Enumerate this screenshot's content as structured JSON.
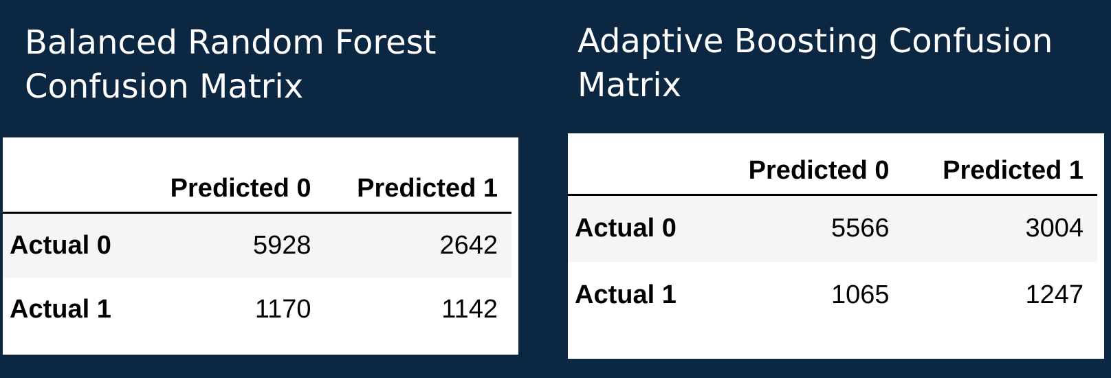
{
  "background_color": "#0c2742",
  "tables": [
    {
      "title": "Balanced Random Forest Confusion Matrix",
      "columns": [
        "",
        "Predicted 0",
        "Predicted 1"
      ],
      "rows": [
        {
          "label": "Actual 0",
          "values": [
            "5928",
            "2642"
          ]
        },
        {
          "label": "Actual 1",
          "values": [
            "1170",
            "1142"
          ]
        }
      ]
    },
    {
      "title": "Adaptive Boosting Confusion Matrix",
      "columns": [
        "",
        "Predicted 0",
        "Predicted 1"
      ],
      "rows": [
        {
          "label": "Actual 0",
          "values": [
            "5566",
            "3004"
          ]
        },
        {
          "label": "Actual 1",
          "values": [
            "1065",
            "1247"
          ]
        }
      ]
    }
  ]
}
